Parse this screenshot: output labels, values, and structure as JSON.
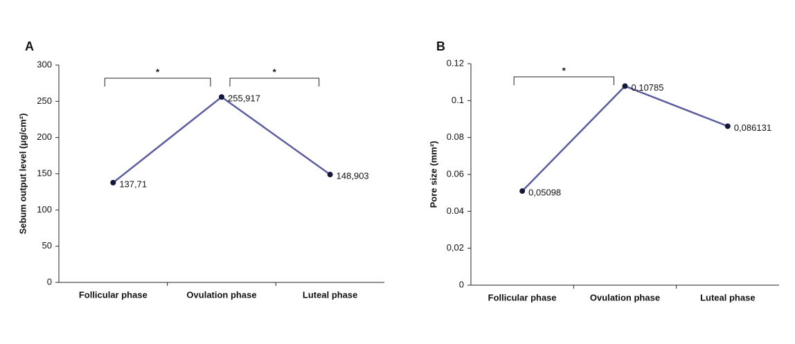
{
  "chart_data": [
    {
      "type": "line",
      "panel_label": "A",
      "y_label": "Sebum output level (μg/cm²)",
      "categories": [
        "Follicular phase",
        "Ovulation phase",
        "Luteal phase"
      ],
      "series": [
        {
          "color": "#5a5c9e",
          "values": [
            137.71,
            255.917,
            148.903
          ],
          "value_labels": [
            "137,71",
            "255,917",
            "148,903"
          ]
        }
      ],
      "ylim": [
        0,
        300
      ],
      "yticks": [
        0,
        50,
        100,
        150,
        200,
        250,
        300
      ],
      "annotations": [
        {
          "text": "*",
          "between": [
            0,
            1
          ]
        },
        {
          "text": "*",
          "between": [
            1,
            2
          ]
        }
      ]
    },
    {
      "type": "line",
      "panel_label": "B",
      "y_label": "Pore size (mm²)",
      "categories": [
        "Follicular phase",
        "Ovulation phase",
        "Luteal phase"
      ],
      "series": [
        {
          "color": "#5a5c9e",
          "values": [
            0.05098,
            0.10785,
            0.086131
          ],
          "value_labels": [
            "0,05098",
            "0,10785",
            "0,086131"
          ]
        }
      ],
      "ylim": [
        0,
        0.12
      ],
      "yticks": [
        0,
        {
          "value": 0.02,
          "label": "0,02"
        },
        0.04,
        0.06,
        0.08,
        0.1,
        0.12
      ],
      "annotations": [
        {
          "text": "*",
          "between": [
            0,
            1
          ]
        }
      ]
    }
  ]
}
